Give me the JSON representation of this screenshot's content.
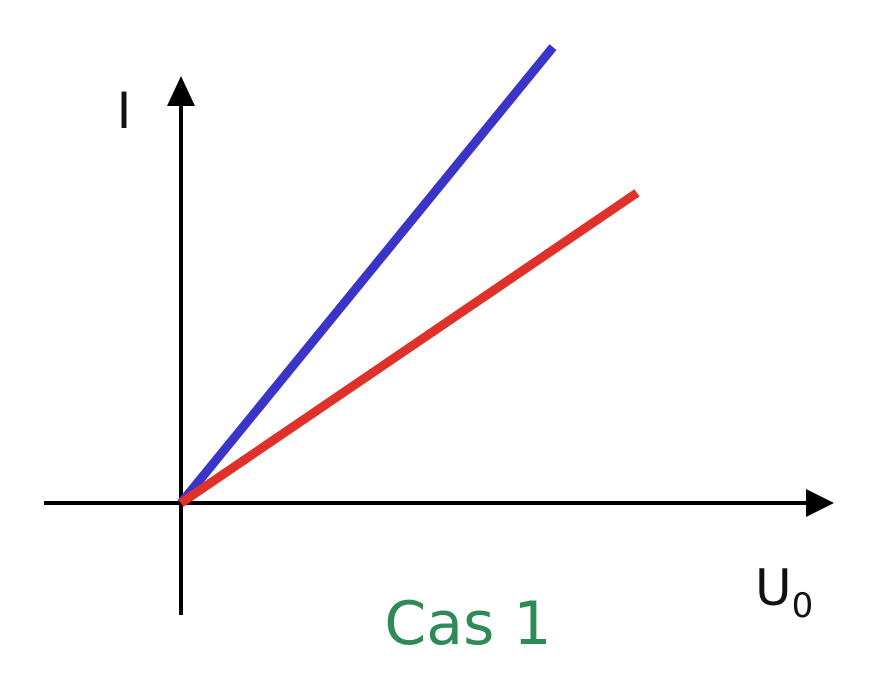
{
  "chart_data": {
    "type": "line",
    "xlabel": "U",
    "xlabel_sub": "0",
    "ylabel": "I",
    "annotation": "Cas 1",
    "xlim": [
      0,
      1
    ],
    "ylim": [
      0,
      1
    ],
    "grid": false,
    "series": [
      {
        "color": "#3a35c8",
        "x": [
          0,
          0.62
        ],
        "y": [
          0,
          0.97
        ]
      },
      {
        "color": "#e0302a",
        "x": [
          0,
          0.76
        ],
        "y": [
          0,
          0.66
        ]
      }
    ]
  },
  "colors": {
    "axis": "#000000",
    "annotation": "#2e8b57",
    "background": "#ffffff"
  }
}
